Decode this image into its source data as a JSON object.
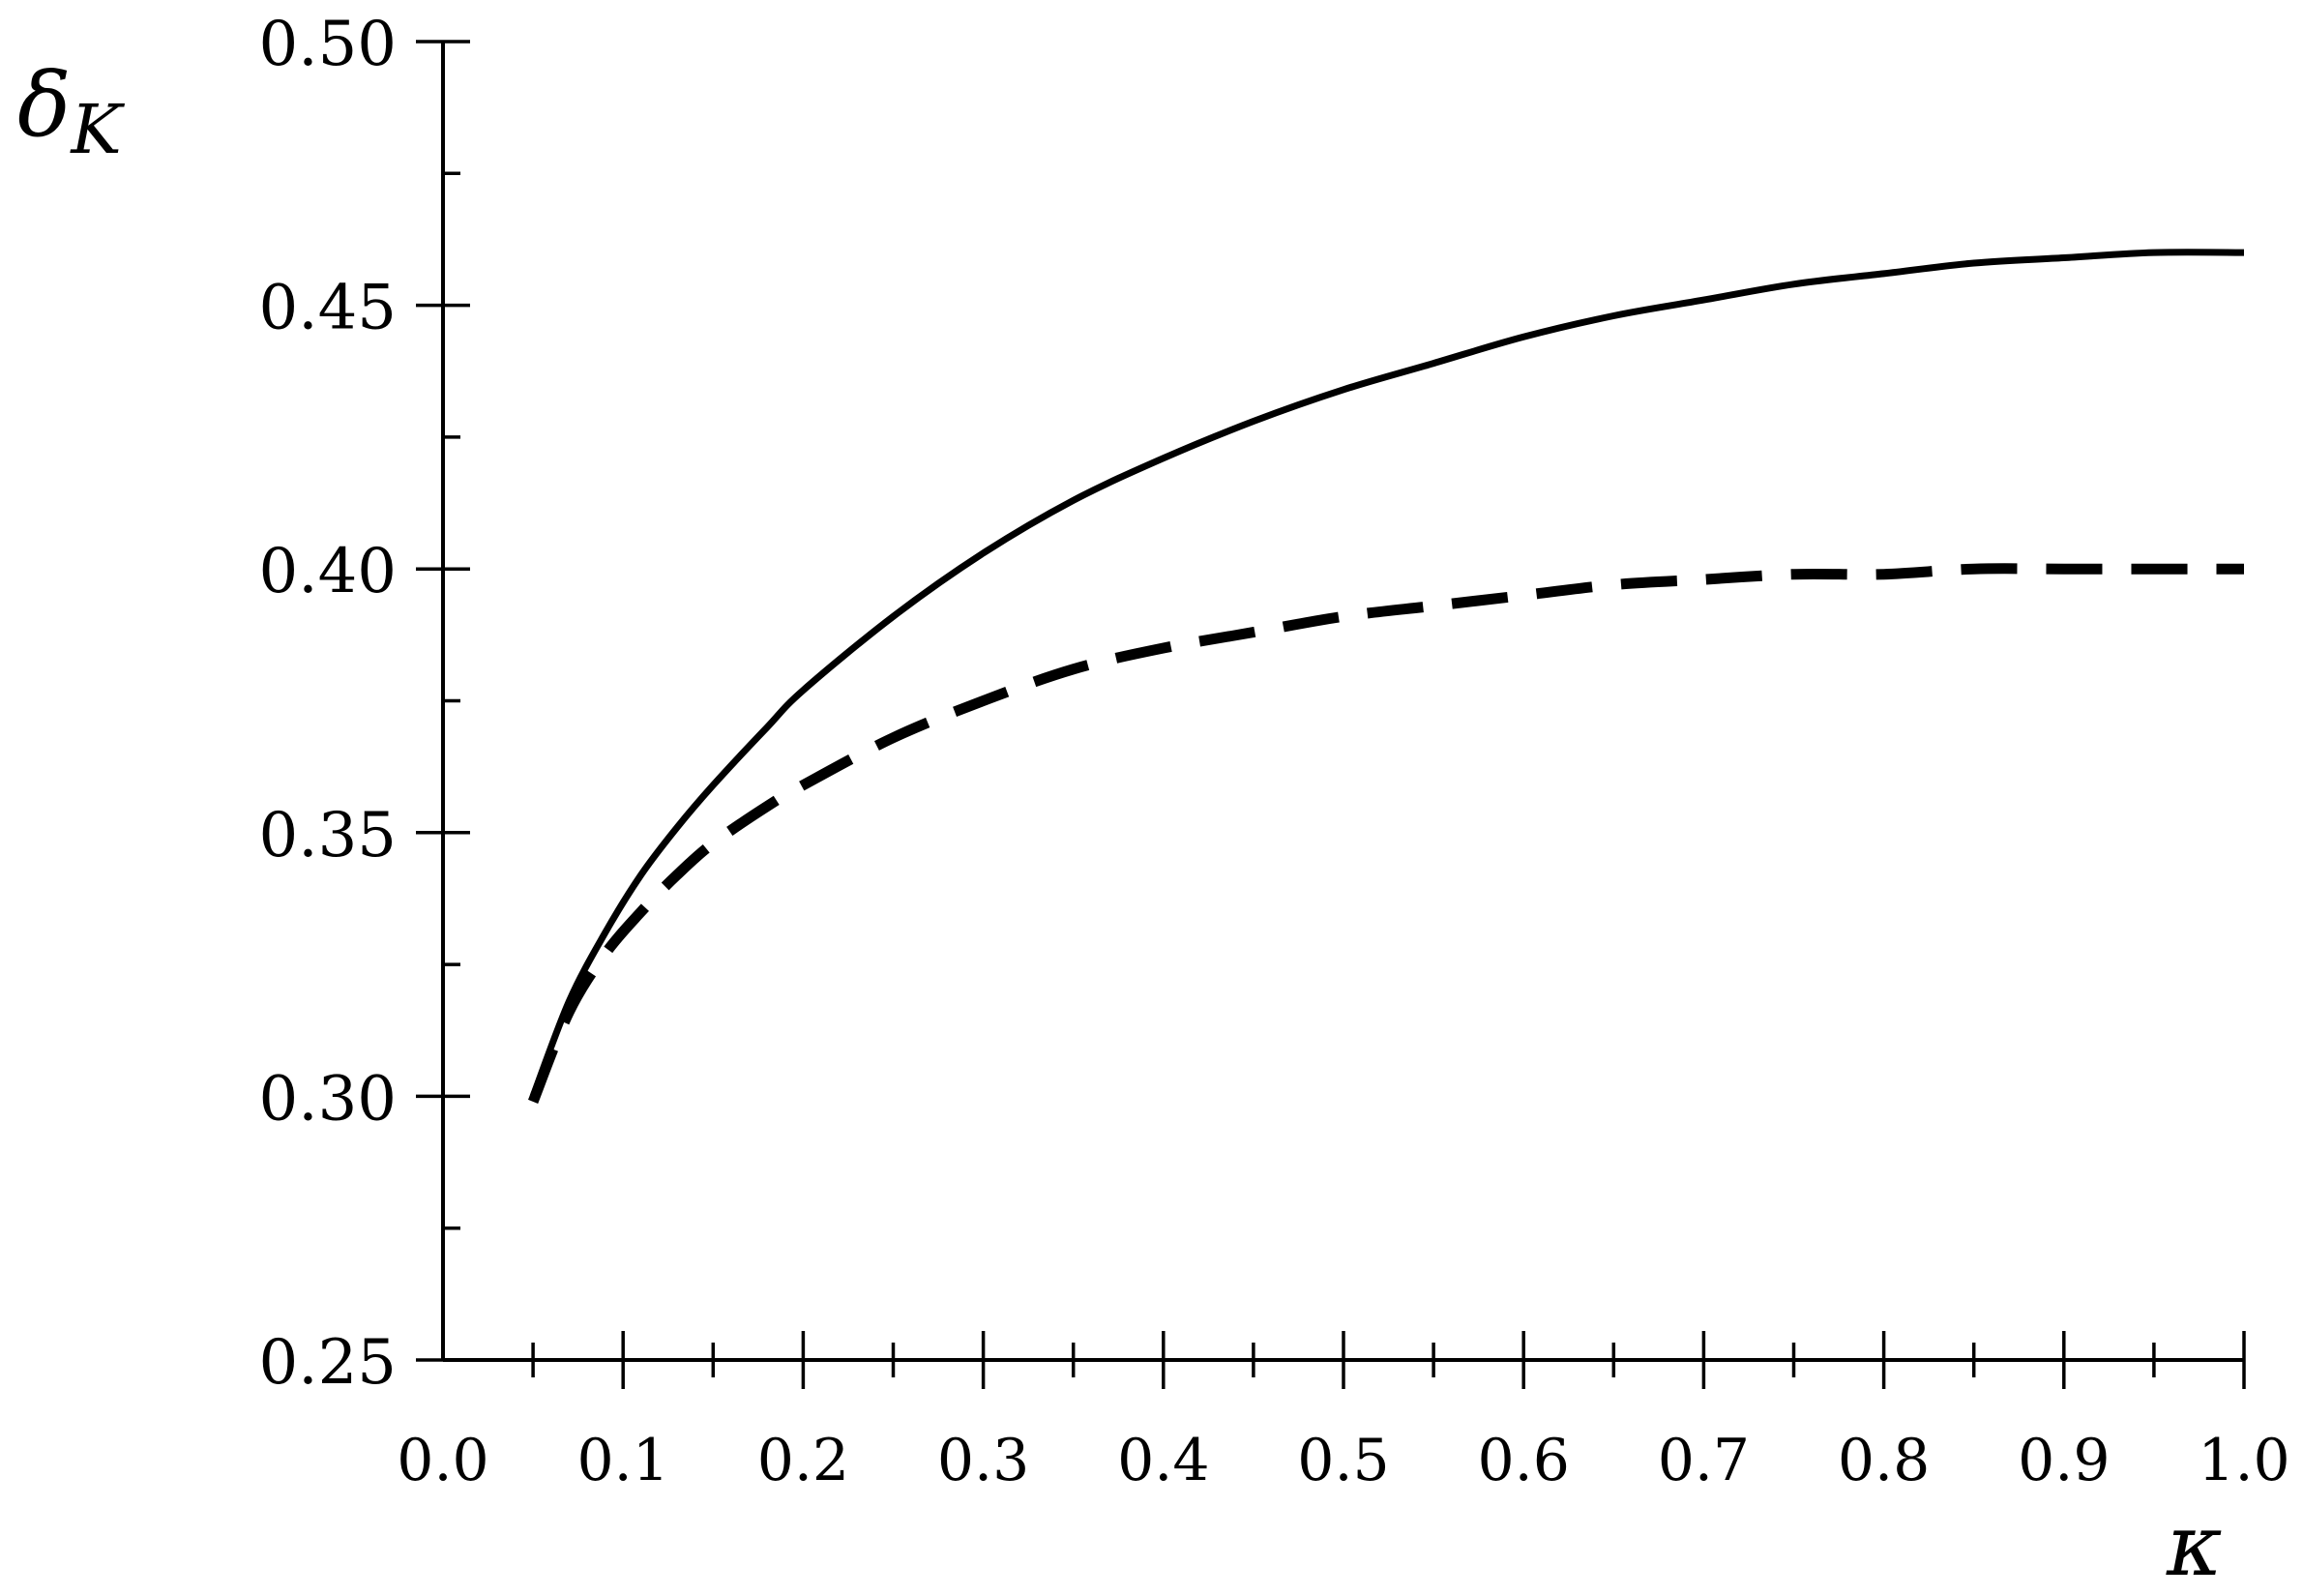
{
  "chart_data": {
    "type": "line",
    "title": "",
    "xlabel": "κ",
    "ylabel_main": "δ",
    "ylabel_sub": "K",
    "xlim": [
      0.0,
      1.0
    ],
    "ylim": [
      0.25,
      0.5
    ],
    "x_ticks": [
      0.0,
      0.1,
      0.2,
      0.3,
      0.4,
      0.5,
      0.6,
      0.7,
      0.8,
      0.9,
      1.0
    ],
    "x_tick_labels": [
      "0.0",
      "0.1",
      "0.2",
      "0.3",
      "0.4",
      "0.5",
      "0.6",
      "0.7",
      "0.8",
      "0.9",
      "1.0"
    ],
    "x_minor_step": 0.05,
    "y_ticks": [
      0.25,
      0.3,
      0.35,
      0.4,
      0.45,
      0.5
    ],
    "y_tick_labels": [
      "0.25",
      "0.30",
      "0.35",
      "0.40",
      "0.45",
      "0.50"
    ],
    "y_minor_step": 0.025,
    "grid": false,
    "legend": "none",
    "series": [
      {
        "style": "solid",
        "color": "#000000",
        "x": [
          0.05,
          0.07,
          0.09,
          0.11,
          0.13,
          0.15,
          0.18,
          0.2,
          0.25,
          0.3,
          0.35,
          0.4,
          0.45,
          0.5,
          0.55,
          0.6,
          0.65,
          0.7,
          0.75,
          0.8,
          0.85,
          0.9,
          0.95,
          1.0
        ],
        "y": [
          0.3,
          0.318,
          0.331,
          0.342,
          0.351,
          0.359,
          0.37,
          0.377,
          0.391,
          0.403,
          0.413,
          0.421,
          0.428,
          0.434,
          0.439,
          0.444,
          0.448,
          0.451,
          0.454,
          0.456,
          0.458,
          0.459,
          0.46,
          0.46
        ]
      },
      {
        "style": "dashed",
        "color": "#000000",
        "x": [
          0.05,
          0.07,
          0.09,
          0.11,
          0.13,
          0.15,
          0.18,
          0.2,
          0.25,
          0.3,
          0.35,
          0.4,
          0.45,
          0.5,
          0.55,
          0.6,
          0.65,
          0.7,
          0.75,
          0.8,
          0.85,
          0.9,
          0.95,
          1.0
        ],
        "y": [
          0.299,
          0.316,
          0.327,
          0.335,
          0.342,
          0.348,
          0.355,
          0.359,
          0.368,
          0.375,
          0.381,
          0.385,
          0.388,
          0.391,
          0.393,
          0.395,
          0.397,
          0.398,
          0.399,
          0.399,
          0.4,
          0.4,
          0.4,
          0.4
        ]
      }
    ]
  }
}
